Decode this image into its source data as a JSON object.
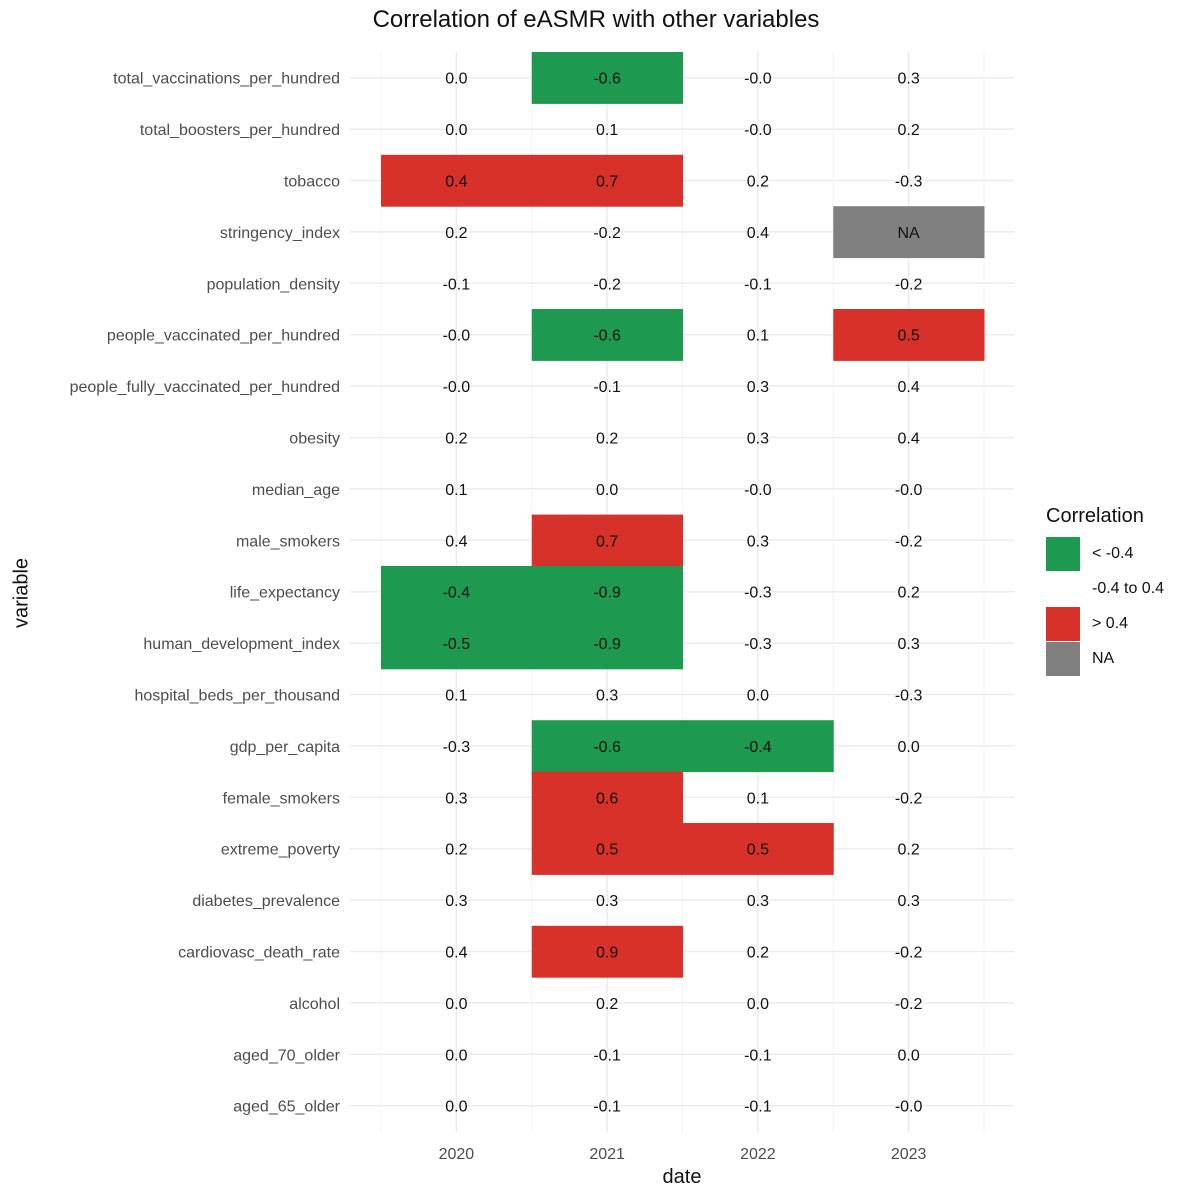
{
  "chart_data": {
    "type": "heatmap",
    "title": "Correlation of eASMR with other variables",
    "xlabel": "date",
    "ylabel": "variable",
    "x": [
      "2020",
      "2021",
      "2022",
      "2023"
    ],
    "y": [
      "total_vaccinations_per_hundred",
      "total_boosters_per_hundred",
      "tobacco",
      "stringency_index",
      "population_density",
      "people_vaccinated_per_hundred",
      "people_fully_vaccinated_per_hundred",
      "obesity",
      "median_age",
      "male_smokers",
      "life_expectancy",
      "human_development_index",
      "hospital_beds_per_thousand",
      "gdp_per_capita",
      "female_smokers",
      "extreme_poverty",
      "diabetes_prevalence",
      "cardiovasc_death_rate",
      "alcohol",
      "aged_70_older",
      "aged_65_older"
    ],
    "values": [
      [
        "0.0",
        "-0.6",
        "-0.0",
        "0.3"
      ],
      [
        "0.0",
        "0.1",
        "-0.0",
        "0.2"
      ],
      [
        "0.4",
        "0.7",
        "0.2",
        "-0.3"
      ],
      [
        "0.2",
        "-0.2",
        "0.4",
        "NA"
      ],
      [
        "-0.1",
        "-0.2",
        "-0.1",
        "-0.2"
      ],
      [
        "-0.0",
        "-0.6",
        "0.1",
        "0.5"
      ],
      [
        "-0.0",
        "-0.1",
        "0.3",
        "0.4"
      ],
      [
        "0.2",
        "0.2",
        "0.3",
        "0.4"
      ],
      [
        "0.1",
        "0.0",
        "-0.0",
        "-0.0"
      ],
      [
        "0.4",
        "0.7",
        "0.3",
        "-0.2"
      ],
      [
        "-0.4",
        "-0.9",
        "-0.3",
        "0.2"
      ],
      [
        "-0.5",
        "-0.9",
        "-0.3",
        "0.3"
      ],
      [
        "0.1",
        "0.3",
        "0.0",
        "-0.3"
      ],
      [
        "-0.3",
        "-0.6",
        "-0.4",
        "0.0"
      ],
      [
        "0.3",
        "0.6",
        "0.1",
        "-0.2"
      ],
      [
        "0.2",
        "0.5",
        "0.5",
        "0.2"
      ],
      [
        "0.3",
        "0.3",
        "0.3",
        "0.3"
      ],
      [
        "0.4",
        "0.9",
        "0.2",
        "-0.2"
      ],
      [
        "0.0",
        "0.2",
        "0.0",
        "-0.2"
      ],
      [
        "0.0",
        "-0.1",
        "-0.1",
        "0.0"
      ],
      [
        "0.0",
        "-0.1",
        "-0.1",
        "-0.0"
      ]
    ],
    "categories": [
      [
        "neutral",
        "low",
        "neutral",
        "neutral"
      ],
      [
        "neutral",
        "neutral",
        "neutral",
        "neutral"
      ],
      [
        "high",
        "high",
        "neutral",
        "neutral"
      ],
      [
        "neutral",
        "neutral",
        "neutral",
        "na"
      ],
      [
        "neutral",
        "neutral",
        "neutral",
        "neutral"
      ],
      [
        "neutral",
        "low",
        "neutral",
        "high"
      ],
      [
        "neutral",
        "neutral",
        "neutral",
        "neutral"
      ],
      [
        "neutral",
        "neutral",
        "neutral",
        "neutral"
      ],
      [
        "neutral",
        "neutral",
        "neutral",
        "neutral"
      ],
      [
        "neutral",
        "high",
        "neutral",
        "neutral"
      ],
      [
        "low",
        "low",
        "neutral",
        "neutral"
      ],
      [
        "low",
        "low",
        "neutral",
        "neutral"
      ],
      [
        "neutral",
        "neutral",
        "neutral",
        "neutral"
      ],
      [
        "neutral",
        "low",
        "low",
        "neutral"
      ],
      [
        "neutral",
        "high",
        "neutral",
        "neutral"
      ],
      [
        "neutral",
        "high",
        "high",
        "neutral"
      ],
      [
        "neutral",
        "neutral",
        "neutral",
        "neutral"
      ],
      [
        "neutral",
        "high",
        "neutral",
        "neutral"
      ],
      [
        "neutral",
        "neutral",
        "neutral",
        "neutral"
      ],
      [
        "neutral",
        "neutral",
        "neutral",
        "neutral"
      ],
      [
        "neutral",
        "neutral",
        "neutral",
        "neutral"
      ]
    ],
    "legend": {
      "title": "Correlation",
      "position": "right",
      "items": [
        {
          "key": "low",
          "label": "< -0.4",
          "color": "#1e9950"
        },
        {
          "key": "neutral",
          "label": "-0.4 to 0.4",
          "color": "#ffffff"
        },
        {
          "key": "high",
          "label": "> 0.4",
          "color": "#d7312a"
        },
        {
          "key": "na",
          "label": "NA",
          "color": "#808080"
        }
      ]
    },
    "grid": true
  }
}
